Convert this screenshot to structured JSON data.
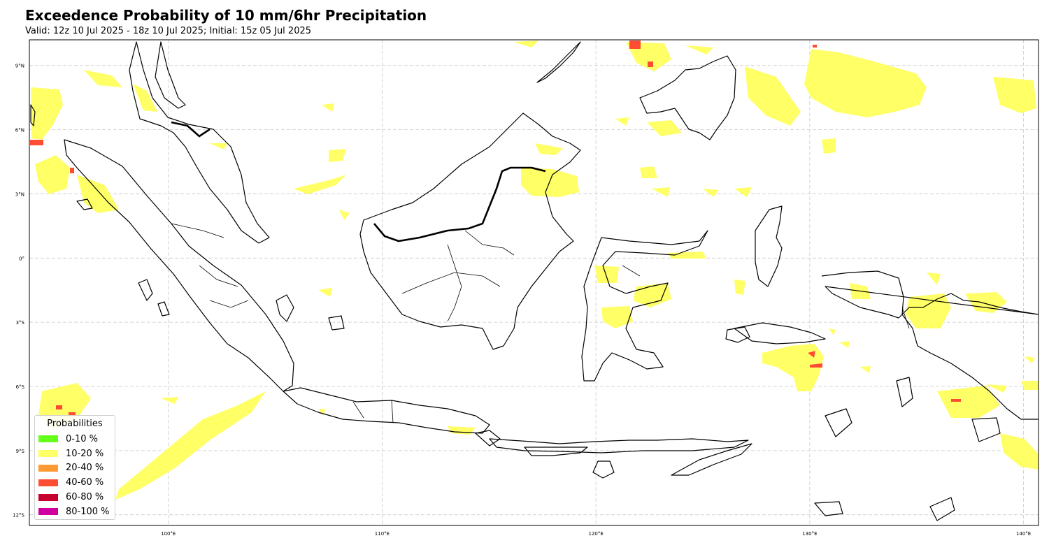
{
  "title": "Exceedence Probability of 10 mm/6hr Precipitation",
  "subtitle": "Valid: 12z 10 Jul 2025 - 18z 10 Jul 2025; Initial: 15z 05 Jul 2025",
  "map": {
    "lon_range": [
      93.5,
      140.7
    ],
    "lat_range": [
      -12.5,
      10.2
    ],
    "lon_ticks": [
      {
        "value": 100,
        "label": "100°E"
      },
      {
        "value": 110,
        "label": "110°E"
      },
      {
        "value": 120,
        "label": "120°E"
      },
      {
        "value": 130,
        "label": "130°E"
      },
      {
        "value": 140,
        "label": "140°E"
      }
    ],
    "lat_ticks": [
      {
        "value": 9,
        "label": "9°N"
      },
      {
        "value": 6,
        "label": "6°N"
      },
      {
        "value": 3,
        "label": "3°N"
      },
      {
        "value": 0,
        "label": "0°"
      },
      {
        "value": -3,
        "label": "3°S"
      },
      {
        "value": -6,
        "label": "6°S"
      },
      {
        "value": -9,
        "label": "9°S"
      },
      {
        "value": -12,
        "label": "12°S"
      }
    ],
    "grid": true,
    "coastline_color": "#000000",
    "background": "#ffffff"
  },
  "legend": {
    "title": "Probabilities",
    "items": [
      {
        "label": "0-10 %",
        "color": "#66ff19"
      },
      {
        "label": "10-20 %",
        "color": "#ffff66"
      },
      {
        "label": "20-40 %",
        "color": "#ff9933"
      },
      {
        "label": "40-60 %",
        "color": "#ff4d33"
      },
      {
        "label": "60-80 %",
        "color": "#c80030"
      },
      {
        "label": "80-100 %",
        "color": "#d000a0"
      }
    ]
  }
}
